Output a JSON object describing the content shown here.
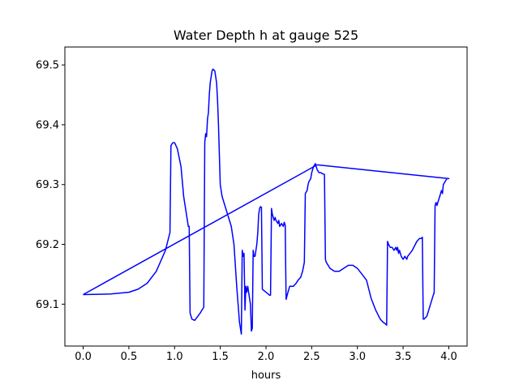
{
  "chart_data": {
    "type": "line",
    "title": "Water Depth h at gauge 525",
    "xlabel": "hours",
    "ylabel": "",
    "xlim": [
      -0.2,
      4.2
    ],
    "ylim": [
      69.03,
      69.53
    ],
    "xticks": [
      0.0,
      0.5,
      1.0,
      1.5,
      2.0,
      2.5,
      3.0,
      3.5,
      4.0
    ],
    "xtick_labels": [
      "0.0",
      "0.5",
      "1.0",
      "1.5",
      "2.0",
      "2.5",
      "3.0",
      "3.5",
      "4.0"
    ],
    "yticks": [
      69.1,
      69.2,
      69.3,
      69.4,
      69.5
    ],
    "ytick_labels": [
      "69.1",
      "69.2",
      "69.3",
      "69.4",
      "69.5"
    ],
    "grid": false,
    "series": [
      {
        "color": "#0000ff",
        "x": [
          0.0,
          0.3,
          0.5,
          0.6,
          0.7,
          0.8,
          0.9,
          0.95,
          0.96,
          0.98,
          1.0,
          1.03,
          1.07,
          1.1,
          1.12,
          1.15,
          1.16,
          1.17,
          1.19,
          1.22,
          1.28,
          1.32,
          1.33,
          1.34,
          1.35,
          1.36,
          1.37,
          1.38,
          1.39,
          1.41,
          1.42,
          1.44,
          1.46,
          1.47,
          1.48,
          1.49,
          1.5,
          1.52,
          1.55,
          1.58,
          1.62,
          1.65,
          1.68,
          1.71,
          1.73,
          1.74,
          1.75,
          1.76,
          1.77,
          1.78,
          1.79,
          1.8,
          1.81,
          1.83,
          1.84,
          1.85,
          1.86,
          1.87,
          1.88,
          1.89,
          1.9,
          1.91,
          1.92,
          1.93,
          1.94,
          1.95,
          1.96,
          2.0,
          2.04,
          2.05,
          2.06,
          2.07,
          2.09,
          2.1,
          2.11,
          2.13,
          2.14,
          2.15,
          2.17,
          2.19,
          2.2,
          2.21,
          2.22,
          2.24,
          2.25,
          2.26,
          2.3,
          2.33,
          2.35,
          2.38,
          2.4,
          2.42,
          2.43,
          2.45,
          2.46,
          2.47,
          2.49,
          2.5,
          2.52,
          2.54,
          2.55,
          2.56,
          2.58,
          2.6,
          2.62,
          2.64,
          2.65,
          2.66,
          2.7,
          2.75,
          2.8,
          2.85,
          2.9,
          2.95,
          3.0,
          3.05,
          3.1,
          3.15,
          3.2,
          3.25,
          3.28,
          3.3,
          3.32,
          3.33,
          3.34,
          3.36,
          3.38,
          3.4,
          3.42,
          3.43,
          3.44,
          3.45,
          3.46,
          3.48,
          3.5,
          3.52,
          3.54,
          3.55,
          3.6,
          3.65,
          3.68,
          3.7,
          3.71,
          3.72,
          3.73,
          3.76,
          3.8,
          3.84,
          3.85,
          3.86,
          3.87,
          3.88,
          3.9,
          3.92,
          3.93,
          3.94,
          3.96,
          3.98,
          4.0,
          2.56,
          0.0
        ],
        "y": [
          69.116,
          69.117,
          69.12,
          69.125,
          69.135,
          69.155,
          69.19,
          69.22,
          69.365,
          69.37,
          69.37,
          69.36,
          69.33,
          69.28,
          69.26,
          69.23,
          69.23,
          69.085,
          69.075,
          69.073,
          69.085,
          69.095,
          69.37,
          69.385,
          69.38,
          69.41,
          69.42,
          69.45,
          69.47,
          69.49,
          69.493,
          69.49,
          69.47,
          69.44,
          69.4,
          69.35,
          69.3,
          69.28,
          69.265,
          69.25,
          69.23,
          69.2,
          69.13,
          69.07,
          69.05,
          69.19,
          69.18,
          69.185,
          69.09,
          69.13,
          69.12,
          69.13,
          69.12,
          69.1,
          69.055,
          69.06,
          69.19,
          69.18,
          69.18,
          69.19,
          69.2,
          69.22,
          69.25,
          69.26,
          69.263,
          69.262,
          69.125,
          69.12,
          69.115,
          69.115,
          69.26,
          69.25,
          69.24,
          69.245,
          69.24,
          69.235,
          69.24,
          69.23,
          69.235,
          69.23,
          69.237,
          69.232,
          69.108,
          69.12,
          69.125,
          69.13,
          69.13,
          69.135,
          69.14,
          69.145,
          69.155,
          69.17,
          69.285,
          69.29,
          69.3,
          69.305,
          69.31,
          69.32,
          69.33,
          69.335,
          69.33,
          69.325,
          69.32,
          69.32,
          69.318,
          69.317,
          69.175,
          69.17,
          69.16,
          69.155,
          69.155,
          69.16,
          69.165,
          69.165,
          69.16,
          69.15,
          69.14,
          69.11,
          69.09,
          69.075,
          69.07,
          69.068,
          69.065,
          69.205,
          69.2,
          69.195,
          69.195,
          69.19,
          69.195,
          69.19,
          69.195,
          69.185,
          69.19,
          69.18,
          69.175,
          69.18,
          69.175,
          69.18,
          69.19,
          69.205,
          69.21,
          69.21,
          69.212,
          69.075,
          69.075,
          69.08,
          69.1,
          69.12,
          69.265,
          69.27,
          69.265,
          69.27,
          69.28,
          69.29,
          69.285,
          69.3,
          69.305,
          69.31,
          69.31,
          69.333,
          69.116
        ]
      }
    ]
  }
}
